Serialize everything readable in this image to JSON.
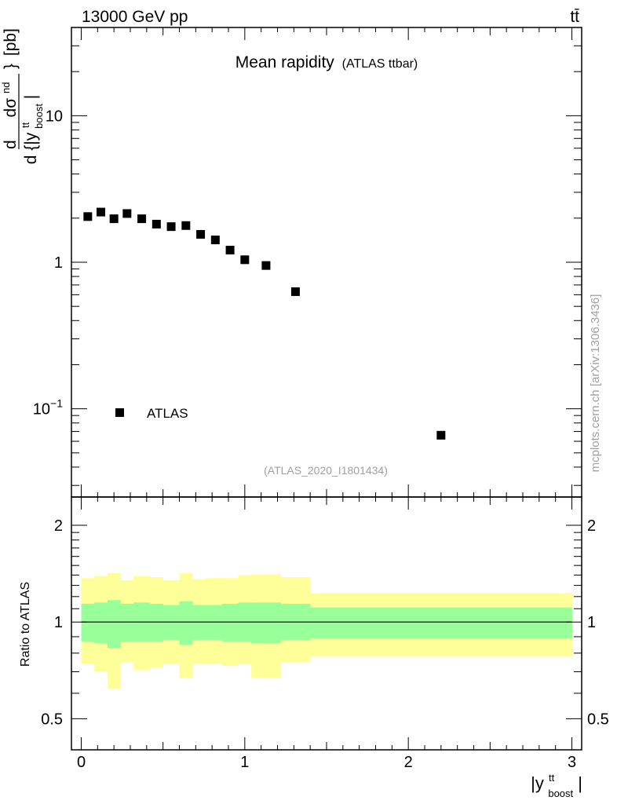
{
  "header": {
    "energy_label": "13000 GeV pp",
    "process_label": "tt̄"
  },
  "watermark": {
    "side_text": "mcplots.cern.ch [arXiv:1306.3436]",
    "analysis_id": "(ATLAS_2020_I1801434)"
  },
  "chart_data": [
    {
      "type": "scatter",
      "title": "Mean rapidity",
      "subtitle": "(ATLAS ttbar)",
      "ylabel": "d dσ^nd / d {|y^tt_boost|} [pb]",
      "ylabel_parts": {
        "d": "d",
        "numerator": "dσ",
        "numerator_sup": "nd",
        "denominator": "d {|y",
        "denominator_sup": "tt",
        "denominator_sub": "boost",
        "denominator_end": "|",
        "brace_close": "}",
        "units": "[pb]"
      },
      "yscale": "log",
      "ylim": [
        0.025,
        40
      ],
      "xlim": [
        -0.06,
        3.06
      ],
      "y_tick_labels": [
        {
          "value": 10,
          "label": "10"
        },
        {
          "value": 1,
          "label": "1"
        },
        {
          "value": 0.1,
          "base": "10",
          "exp": "−1"
        }
      ],
      "legend": {
        "entries": [
          "ATLAS"
        ],
        "placement": "lower-left"
      },
      "series": [
        {
          "name": "ATLAS",
          "color": "#000000",
          "marker": "square",
          "x": [
            0.04,
            0.12,
            0.2,
            0.28,
            0.37,
            0.46,
            0.55,
            0.64,
            0.73,
            0.82,
            0.91,
            1.0,
            1.13,
            1.31,
            2.2
          ],
          "y": [
            2.05,
            2.2,
            1.98,
            2.15,
            1.98,
            1.82,
            1.75,
            1.78,
            1.55,
            1.42,
            1.21,
            1.04,
            0.95,
            0.63,
            0.066
          ]
        }
      ]
    },
    {
      "type": "area",
      "ylabel": "Ratio to ATLAS",
      "yscale": "log",
      "ylim": [
        0.4,
        2.45
      ],
      "xlim": [
        -0.06,
        3.06
      ],
      "xlabel_parts": {
        "pre": "|y",
        "sup": "tt",
        "sub": "boost",
        "post": "|"
      },
      "x_tick_labels": [
        {
          "value": 0,
          "label": "0"
        },
        {
          "value": 1,
          "label": "1"
        },
        {
          "value": 2,
          "label": "2"
        },
        {
          "value": 3,
          "label": "3"
        }
      ],
      "y_tick_labels": [
        {
          "value": 2,
          "label": "2"
        },
        {
          "value": 1,
          "label": "1"
        },
        {
          "value": 0.5,
          "label": "0.5"
        }
      ],
      "reference_line": 1,
      "bin_edges": [
        0,
        0.08,
        0.16,
        0.24,
        0.32,
        0.42,
        0.5,
        0.6,
        0.68,
        0.76,
        0.86,
        0.96,
        1.04,
        1.22,
        1.4,
        3.0
      ],
      "bands": [
        {
          "name": "inner",
          "color": "#99ff99",
          "lo": [
            0.87,
            0.86,
            0.83,
            0.87,
            0.87,
            0.87,
            0.88,
            0.85,
            0.88,
            0.88,
            0.87,
            0.87,
            0.86,
            0.88,
            0.89
          ],
          "hi": [
            1.14,
            1.15,
            1.17,
            1.14,
            1.15,
            1.14,
            1.13,
            1.16,
            1.13,
            1.13,
            1.14,
            1.15,
            1.15,
            1.14,
            1.11
          ]
        },
        {
          "name": "outer",
          "color": "#ffff99",
          "lo": [
            0.74,
            0.7,
            0.62,
            0.75,
            0.71,
            0.72,
            0.74,
            0.67,
            0.74,
            0.74,
            0.73,
            0.74,
            0.67,
            0.75,
            0.78
          ],
          "hi": [
            1.37,
            1.39,
            1.42,
            1.35,
            1.39,
            1.38,
            1.35,
            1.42,
            1.36,
            1.37,
            1.37,
            1.4,
            1.41,
            1.38,
            1.23
          ]
        }
      ]
    }
  ]
}
